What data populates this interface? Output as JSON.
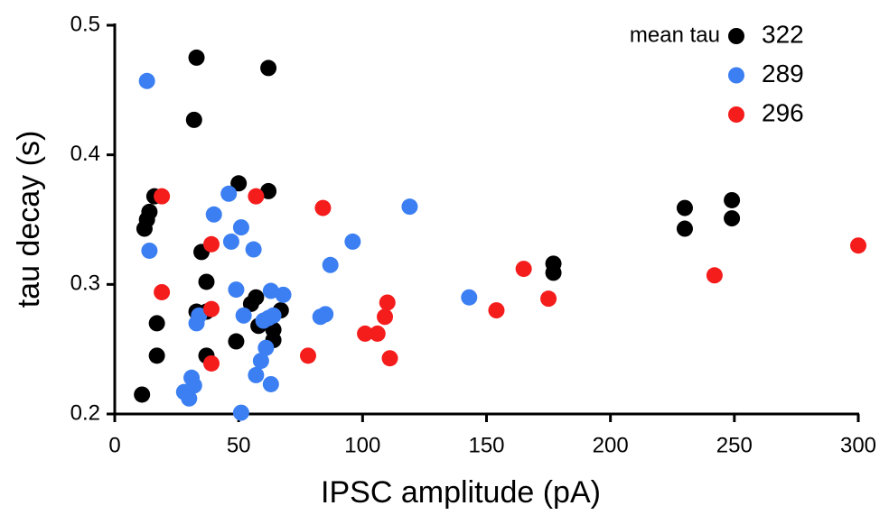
{
  "chart_data": {
    "type": "scatter",
    "xlabel": "IPSC amplitude (pA)",
    "ylabel": "tau decay (s)",
    "legend_title": "mean tau",
    "legend": "upper right",
    "xlim": [
      0,
      300
    ],
    "xticks": [
      0,
      50,
      100,
      150,
      200,
      250,
      300
    ],
    "ylim": [
      0.2,
      0.5
    ],
    "yticks": [
      0.2,
      0.3,
      0.4,
      0.5
    ],
    "series": [
      {
        "name": "322",
        "color": "#000000",
        "x": [
          11,
          12,
          13,
          14,
          16,
          17,
          17,
          33,
          32,
          35,
          37,
          33,
          37,
          37,
          50,
          49,
          62,
          62,
          55,
          57,
          58,
          64,
          64,
          67,
          177,
          177,
          230,
          230,
          249,
          249
        ],
        "values": [
          0.215,
          0.343,
          0.35,
          0.356,
          0.368,
          0.27,
          0.245,
          0.475,
          0.427,
          0.325,
          0.302,
          0.279,
          0.279,
          0.245,
          0.378,
          0.256,
          0.467,
          0.372,
          0.285,
          0.29,
          0.268,
          0.265,
          0.257,
          0.28,
          0.316,
          0.309,
          0.359,
          0.343,
          0.365,
          0.351
        ]
      },
      {
        "name": "289",
        "color": "#3b7ff2",
        "x": [
          13,
          14,
          28,
          30,
          31,
          32,
          33,
          34,
          40,
          46,
          47,
          49,
          51,
          52,
          51,
          56,
          57,
          59,
          60,
          61,
          62,
          63,
          63,
          64,
          68,
          83,
          85,
          87,
          96,
          119,
          143
        ],
        "values": [
          0.457,
          0.326,
          0.217,
          0.212,
          0.228,
          0.222,
          0.27,
          0.276,
          0.354,
          0.37,
          0.333,
          0.296,
          0.344,
          0.276,
          0.201,
          0.327,
          0.23,
          0.241,
          0.272,
          0.251,
          0.274,
          0.295,
          0.223,
          0.276,
          0.292,
          0.275,
          0.277,
          0.315,
          0.333,
          0.36,
          0.29
        ]
      },
      {
        "name": "296",
        "color": "#f51c1c",
        "x": [
          19,
          19,
          39,
          39,
          39,
          57,
          78,
          84,
          101,
          106,
          109,
          110,
          111,
          154,
          165,
          175,
          242,
          300
        ],
        "values": [
          0.368,
          0.294,
          0.331,
          0.281,
          0.239,
          0.368,
          0.245,
          0.359,
          0.262,
          0.262,
          0.275,
          0.286,
          0.243,
          0.28,
          0.312,
          0.289,
          0.307,
          0.33
        ]
      }
    ]
  }
}
